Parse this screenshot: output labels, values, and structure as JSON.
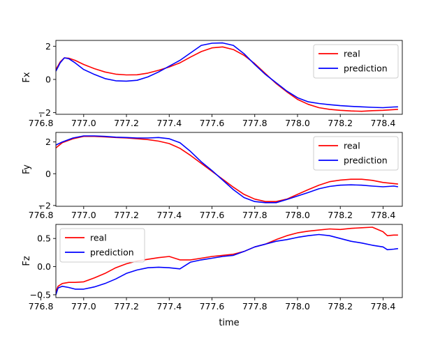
{
  "figure": {
    "xlabel": "time"
  },
  "colors": {
    "real": "#ff0000",
    "prediction": "#0000ff"
  },
  "chart_data": [
    {
      "type": "line",
      "ylabel": "Fx",
      "xlim": [
        776.87,
        778.49
      ],
      "ylim": [
        -2.1,
        2.35
      ],
      "xticks": [
        "776.8",
        "777.0",
        "777.2",
        "777.4",
        "777.6",
        "777.8",
        "778.0",
        "778.2",
        "778.4"
      ],
      "yticks": [
        -2,
        0,
        2
      ],
      "legend": "top-right",
      "series": [
        {
          "name": "real",
          "color": "#ff0000",
          "x": [
            776.87,
            776.89,
            776.91,
            776.93,
            776.96,
            777.0,
            777.05,
            777.1,
            777.15,
            777.2,
            777.25,
            777.3,
            777.35,
            777.4,
            777.45,
            777.5,
            777.55,
            777.6,
            777.65,
            777.7,
            777.75,
            777.8,
            777.85,
            777.9,
            777.95,
            778.0,
            778.05,
            778.1,
            778.15,
            778.2,
            778.25,
            778.3,
            778.35,
            778.4,
            778.45,
            778.47
          ],
          "y": [
            0.6,
            1.05,
            1.3,
            1.28,
            1.15,
            0.9,
            0.65,
            0.45,
            0.32,
            0.27,
            0.28,
            0.38,
            0.55,
            0.75,
            1.0,
            1.35,
            1.68,
            1.9,
            1.96,
            1.8,
            1.45,
            0.95,
            0.35,
            -0.25,
            -0.75,
            -1.2,
            -1.5,
            -1.7,
            -1.8,
            -1.86,
            -1.9,
            -1.92,
            -1.88,
            -1.86,
            -1.82,
            -1.8
          ]
        },
        {
          "name": "prediction",
          "color": "#0000ff",
          "x": [
            776.87,
            776.89,
            776.91,
            776.93,
            776.96,
            777.0,
            777.05,
            777.1,
            777.15,
            777.2,
            777.25,
            777.3,
            777.35,
            777.4,
            777.45,
            777.5,
            777.55,
            777.6,
            777.65,
            777.7,
            777.75,
            777.8,
            777.85,
            777.9,
            777.95,
            778.0,
            778.05,
            778.1,
            778.15,
            778.2,
            778.25,
            778.3,
            778.35,
            778.4,
            778.45,
            778.47
          ],
          "y": [
            0.5,
            1.0,
            1.3,
            1.25,
            1.0,
            0.6,
            0.3,
            0.05,
            -0.08,
            -0.1,
            -0.05,
            0.15,
            0.45,
            0.8,
            1.15,
            1.6,
            2.05,
            2.18,
            2.2,
            2.05,
            1.55,
            0.9,
            0.3,
            -0.2,
            -0.7,
            -1.1,
            -1.35,
            -1.45,
            -1.52,
            -1.58,
            -1.62,
            -1.65,
            -1.68,
            -1.7,
            -1.66,
            -1.65
          ]
        }
      ]
    },
    {
      "type": "line",
      "ylabel": "Fy",
      "xlim": [
        776.87,
        778.49
      ],
      "ylim": [
        -2.05,
        2.6
      ],
      "xticks": [
        "776.8",
        "777.0",
        "777.2",
        "777.4",
        "777.6",
        "777.8",
        "778.0",
        "778.2",
        "778.4"
      ],
      "yticks": [
        -2,
        0,
        2
      ],
      "legend": "top-right",
      "series": [
        {
          "name": "real",
          "color": "#ff0000",
          "x": [
            776.87,
            776.9,
            776.95,
            777.0,
            777.05,
            777.1,
            777.15,
            777.2,
            777.25,
            777.3,
            777.35,
            777.4,
            777.45,
            777.5,
            777.55,
            777.6,
            777.65,
            777.7,
            777.75,
            777.8,
            777.85,
            777.9,
            777.95,
            778.0,
            778.05,
            778.1,
            778.15,
            778.2,
            778.25,
            778.3,
            778.35,
            778.4,
            778.45,
            778.47
          ],
          "y": [
            1.62,
            1.95,
            2.2,
            2.35,
            2.35,
            2.32,
            2.28,
            2.25,
            2.2,
            2.15,
            2.05,
            1.9,
            1.6,
            1.15,
            0.65,
            0.15,
            -0.35,
            -0.85,
            -1.3,
            -1.6,
            -1.75,
            -1.75,
            -1.6,
            -1.3,
            -1.0,
            -0.72,
            -0.5,
            -0.4,
            -0.35,
            -0.35,
            -0.42,
            -0.55,
            -0.62,
            -0.65
          ]
        },
        {
          "name": "prediction",
          "color": "#0000ff",
          "x": [
            776.87,
            776.9,
            776.95,
            777.0,
            777.05,
            777.1,
            777.15,
            777.2,
            777.25,
            777.3,
            777.35,
            777.4,
            777.45,
            777.5,
            777.55,
            777.6,
            777.65,
            777.7,
            777.75,
            777.8,
            777.85,
            777.9,
            777.95,
            778.0,
            778.05,
            778.1,
            778.15,
            778.2,
            778.25,
            778.3,
            778.35,
            778.4,
            778.45,
            778.47
          ],
          "y": [
            1.8,
            2.0,
            2.25,
            2.38,
            2.38,
            2.35,
            2.3,
            2.28,
            2.25,
            2.25,
            2.28,
            2.2,
            1.95,
            1.4,
            0.75,
            0.2,
            -0.4,
            -1.0,
            -1.5,
            -1.75,
            -1.82,
            -1.82,
            -1.62,
            -1.4,
            -1.18,
            -0.95,
            -0.8,
            -0.72,
            -0.7,
            -0.72,
            -0.78,
            -0.82,
            -0.78,
            -0.82
          ]
        }
      ]
    },
    {
      "type": "line",
      "ylabel": "Fz",
      "xlim": [
        776.87,
        778.49
      ],
      "ylim": [
        -0.55,
        0.75
      ],
      "xticks": [
        "776.8",
        "777.0",
        "777.2",
        "777.4",
        "777.6",
        "777.8",
        "778.0",
        "778.2",
        "778.4"
      ],
      "yticks": [
        -0.5,
        0.0,
        0.5
      ],
      "legend": "top-left",
      "series": [
        {
          "name": "real",
          "color": "#ff0000",
          "x": [
            776.87,
            776.88,
            776.9,
            776.93,
            776.96,
            777.0,
            777.05,
            777.1,
            777.15,
            777.2,
            777.25,
            777.3,
            777.35,
            777.4,
            777.45,
            777.5,
            777.55,
            777.6,
            777.65,
            777.7,
            777.75,
            777.8,
            777.85,
            777.9,
            777.95,
            778.0,
            778.05,
            778.1,
            778.15,
            778.2,
            778.25,
            778.3,
            778.35,
            778.4,
            778.42,
            778.45,
            778.47
          ],
          "y": [
            -0.45,
            -0.35,
            -0.3,
            -0.28,
            -0.28,
            -0.27,
            -0.2,
            -0.12,
            -0.02,
            0.05,
            0.1,
            0.13,
            0.16,
            0.18,
            0.12,
            0.12,
            0.15,
            0.18,
            0.2,
            0.22,
            0.27,
            0.35,
            0.4,
            0.48,
            0.55,
            0.6,
            0.63,
            0.65,
            0.67,
            0.66,
            0.68,
            0.69,
            0.7,
            0.62,
            0.55,
            0.56,
            0.56
          ]
        },
        {
          "name": "prediction",
          "color": "#0000ff",
          "x": [
            776.87,
            776.88,
            776.9,
            776.93,
            776.96,
            777.0,
            777.05,
            777.1,
            777.15,
            777.2,
            777.25,
            777.3,
            777.35,
            777.4,
            777.45,
            777.5,
            777.55,
            777.6,
            777.65,
            777.7,
            777.75,
            777.8,
            777.85,
            777.9,
            777.95,
            778.0,
            778.05,
            778.1,
            778.15,
            778.2,
            778.25,
            778.3,
            778.35,
            778.4,
            778.42,
            778.45,
            778.47
          ],
          "y": [
            -0.5,
            -0.38,
            -0.35,
            -0.37,
            -0.4,
            -0.4,
            -0.36,
            -0.3,
            -0.22,
            -0.12,
            -0.06,
            -0.02,
            -0.01,
            -0.02,
            -0.04,
            0.08,
            0.12,
            0.15,
            0.18,
            0.2,
            0.27,
            0.35,
            0.4,
            0.45,
            0.48,
            0.52,
            0.55,
            0.57,
            0.55,
            0.5,
            0.45,
            0.42,
            0.38,
            0.35,
            0.3,
            0.31,
            0.32
          ]
        }
      ]
    }
  ]
}
